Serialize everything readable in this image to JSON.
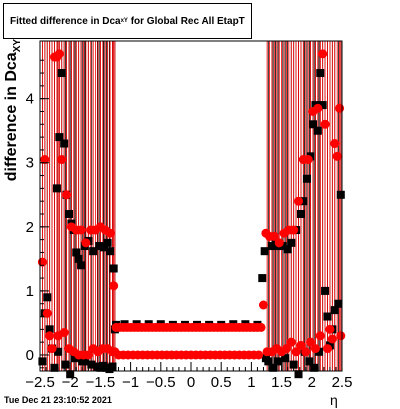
{
  "title": {
    "main": "Fitted difference in Dca",
    "sub": "xY",
    "rest": "for Global Rec All EtapT"
  },
  "ylabel": {
    "main": "difference in Dca",
    "sub": "XY"
  },
  "xlabel": "η",
  "timestamp": "Tue Dec 21 23:10:52 2021",
  "colors": {
    "series_a": "#000000",
    "series_b": "#ff0000",
    "frame": "#000000"
  },
  "chart_data": {
    "type": "scatter",
    "title": "Fitted difference in Dca xY for Global Rec All EtapT",
    "xlabel": "η",
    "ylabel": "difference in Dca XY",
    "xlim": [
      -2.5,
      2.5
    ],
    "ylim": [
      -0.25,
      4.9
    ],
    "x_ticks": [
      -2.5,
      -2,
      -1.5,
      -1,
      -0.5,
      0,
      0.5,
      1,
      1.5,
      2,
      2.5
    ],
    "x_tick_labels": [
      "−2.5",
      "−2",
      "−1.5",
      "−1",
      "−0.5",
      "0",
      "0.5",
      "1",
      "1.5",
      "2",
      "2.5"
    ],
    "y_ticks": [
      0,
      1,
      2,
      3,
      4
    ],
    "y_tick_labels": [
      "0",
      "1",
      "2",
      "3",
      "4"
    ],
    "grid": false,
    "legend": "none",
    "series": [
      {
        "marker": "square",
        "color": "#000000",
        "points": [
          [
            -2.46,
            -0.1
          ],
          [
            -2.42,
            0.65
          ],
          [
            -2.38,
            0.9
          ],
          [
            -2.34,
            0.4
          ],
          [
            -2.3,
            0.1
          ],
          [
            -2.26,
            -0.2
          ],
          [
            -2.22,
            2.6
          ],
          [
            -2.2,
            0.05
          ],
          [
            -2.18,
            3.4
          ],
          [
            -2.14,
            4.4
          ],
          [
            -2.1,
            3.3
          ],
          [
            -2.08,
            -0.15
          ],
          [
            -2.06,
            2.5
          ],
          [
            -2.02,
            2.2
          ],
          [
            -2.0,
            -0.3
          ],
          [
            -1.98,
            2.05
          ],
          [
            -1.94,
            1.95
          ],
          [
            -1.92,
            -0.05
          ],
          [
            -1.9,
            1.6
          ],
          [
            -1.86,
            1.5
          ],
          [
            -1.82,
            1.4
          ],
          [
            -1.8,
            -0.1
          ],
          [
            -1.76,
            1.7
          ],
          [
            -1.7,
            1.78
          ],
          [
            -1.62,
            1.62
          ],
          [
            -1.52,
            1.7
          ],
          [
            -1.44,
            1.68
          ],
          [
            -1.38,
            1.75
          ],
          [
            -1.34,
            1.62
          ],
          [
            -1.28,
            1.35
          ],
          [
            -1.26,
            0.4
          ],
          [
            -1.75,
            -0.1
          ],
          [
            -1.65,
            -0.15
          ],
          [
            -1.55,
            -0.18
          ],
          [
            -1.5,
            -0.2
          ],
          [
            -1.45,
            -0.17
          ],
          [
            -1.4,
            -0.2
          ],
          [
            -1.35,
            -0.22
          ],
          [
            -1.3,
            -0.18
          ],
          [
            -1.24,
            0.47
          ],
          [
            -1.1,
            0.48
          ],
          [
            -0.9,
            0.48
          ],
          [
            -0.7,
            0.48
          ],
          [
            -0.5,
            0.48
          ],
          [
            -0.3,
            0.47
          ],
          [
            -0.1,
            0.47
          ],
          [
            0.1,
            0.47
          ],
          [
            0.3,
            0.47
          ],
          [
            0.5,
            0.47
          ],
          [
            0.7,
            0.48
          ],
          [
            0.9,
            0.48
          ],
          [
            1.1,
            0.47
          ],
          [
            1.18,
            1.2
          ],
          [
            1.22,
            1.62
          ],
          [
            1.24,
            -0.05
          ],
          [
            1.28,
            -0.1
          ],
          [
            1.34,
            1.7
          ],
          [
            1.36,
            -0.2
          ],
          [
            1.4,
            1.75
          ],
          [
            1.44,
            -0.1
          ],
          [
            1.46,
            1.7
          ],
          [
            1.52,
            1.7
          ],
          [
            1.56,
            -0.05
          ],
          [
            1.6,
            1.65
          ],
          [
            1.66,
            1.75
          ],
          [
            1.7,
            -0.15
          ],
          [
            1.74,
            1.95
          ],
          [
            1.78,
            -0.3
          ],
          [
            1.82,
            2.2
          ],
          [
            1.86,
            2.4
          ],
          [
            1.88,
            0.05
          ],
          [
            1.92,
            2.75
          ],
          [
            1.96,
            -0.1
          ],
          [
            1.98,
            3.1
          ],
          [
            2.02,
            3.6
          ],
          [
            2.04,
            -0.2
          ],
          [
            2.06,
            3.9
          ],
          [
            2.1,
            3.5
          ],
          [
            2.12,
            0.05
          ],
          [
            2.14,
            4.4
          ],
          [
            2.18,
            3.9
          ],
          [
            2.22,
            1.0
          ],
          [
            2.26,
            0.6
          ],
          [
            2.3,
            0.15
          ],
          [
            2.34,
            0.4
          ],
          [
            2.38,
            0.7
          ],
          [
            2.44,
            0.8
          ],
          [
            2.48,
            2.5
          ]
        ]
      },
      {
        "marker": "circle",
        "color": "#ff0000",
        "points": [
          [
            -2.46,
            1.45
          ],
          [
            -2.42,
            3.05
          ],
          [
            -2.38,
            0.65
          ],
          [
            -2.34,
            0.3
          ],
          [
            -2.3,
            0.1
          ],
          [
            -2.26,
            4.65
          ],
          [
            -2.22,
            4.65
          ],
          [
            -2.2,
            0.3
          ],
          [
            -2.18,
            4.7
          ],
          [
            -2.14,
            3.05
          ],
          [
            -2.1,
            0.35
          ],
          [
            -2.06,
            2.5
          ],
          [
            -2.02,
            0.1
          ],
          [
            -1.98,
            2.0
          ],
          [
            -1.94,
            0.05
          ],
          [
            -1.9,
            1.95
          ],
          [
            -1.86,
            0.0
          ],
          [
            -1.82,
            1.95
          ],
          [
            -1.78,
            0.0
          ],
          [
            -1.74,
            1.75
          ],
          [
            -1.7,
            0.0
          ],
          [
            -1.66,
            1.95
          ],
          [
            -1.62,
            0.1
          ],
          [
            -1.58,
            1.95
          ],
          [
            -1.54,
            0.05
          ],
          [
            -1.5,
            2.0
          ],
          [
            -1.46,
            0.1
          ],
          [
            -1.42,
            1.95
          ],
          [
            -1.38,
            0.1
          ],
          [
            -1.34,
            1.9
          ],
          [
            -1.3,
            0.05
          ],
          [
            -1.28,
            1.08
          ],
          [
            -1.26,
            0.05
          ],
          [
            -1.24,
            0.43
          ],
          [
            -1.18,
            0.43
          ],
          [
            -1.12,
            0.43
          ],
          [
            -1.06,
            0.43
          ],
          [
            -1.0,
            0.43
          ],
          [
            -0.94,
            0.43
          ],
          [
            -0.88,
            0.43
          ],
          [
            -0.82,
            0.43
          ],
          [
            -0.76,
            0.43
          ],
          [
            -0.7,
            0.43
          ],
          [
            -0.64,
            0.43
          ],
          [
            -0.58,
            0.43
          ],
          [
            -0.52,
            0.43
          ],
          [
            -0.46,
            0.43
          ],
          [
            -0.4,
            0.43
          ],
          [
            -0.34,
            0.43
          ],
          [
            -0.28,
            0.43
          ],
          [
            -0.22,
            0.43
          ],
          [
            -0.16,
            0.43
          ],
          [
            -0.1,
            0.43
          ],
          [
            -0.04,
            0.43
          ],
          [
            0.02,
            0.43
          ],
          [
            0.08,
            0.43
          ],
          [
            0.14,
            0.43
          ],
          [
            0.2,
            0.43
          ],
          [
            0.26,
            0.43
          ],
          [
            0.32,
            0.43
          ],
          [
            0.38,
            0.43
          ],
          [
            0.44,
            0.43
          ],
          [
            0.5,
            0.43
          ],
          [
            0.56,
            0.43
          ],
          [
            0.62,
            0.43
          ],
          [
            0.68,
            0.43
          ],
          [
            0.74,
            0.43
          ],
          [
            0.8,
            0.43
          ],
          [
            0.86,
            0.43
          ],
          [
            0.92,
            0.43
          ],
          [
            0.98,
            0.43
          ],
          [
            1.04,
            0.43
          ],
          [
            1.1,
            0.43
          ],
          [
            1.16,
            0.43
          ],
          [
            -1.2,
            0.0
          ],
          [
            -1.12,
            0.0
          ],
          [
            -1.04,
            0.0
          ],
          [
            -0.96,
            0.0
          ],
          [
            -0.88,
            0.0
          ],
          [
            -0.8,
            0.0
          ],
          [
            -0.72,
            0.0
          ],
          [
            -0.64,
            0.0
          ],
          [
            -0.56,
            0.0
          ],
          [
            -0.48,
            0.0
          ],
          [
            -0.4,
            0.0
          ],
          [
            -0.32,
            0.0
          ],
          [
            -0.24,
            0.0
          ],
          [
            -0.16,
            0.0
          ],
          [
            -0.08,
            0.0
          ],
          [
            0.0,
            0.0
          ],
          [
            0.08,
            0.0
          ],
          [
            0.16,
            0.0
          ],
          [
            0.24,
            0.0
          ],
          [
            0.32,
            0.0
          ],
          [
            0.4,
            0.0
          ],
          [
            0.48,
            0.0
          ],
          [
            0.56,
            0.0
          ],
          [
            0.64,
            0.0
          ],
          [
            0.72,
            0.0
          ],
          [
            0.8,
            0.0
          ],
          [
            0.88,
            0.0
          ],
          [
            0.96,
            0.0
          ],
          [
            1.04,
            0.0
          ],
          [
            1.12,
            0.0
          ],
          [
            1.2,
            0.78
          ],
          [
            1.24,
            1.9
          ],
          [
            1.26,
            0.05
          ],
          [
            1.3,
            1.85
          ],
          [
            1.34,
            0.05
          ],
          [
            1.38,
            1.85
          ],
          [
            1.42,
            0.1
          ],
          [
            1.46,
            1.75
          ],
          [
            1.5,
            0.05
          ],
          [
            1.54,
            1.9
          ],
          [
            1.58,
            0.1
          ],
          [
            1.62,
            1.95
          ],
          [
            1.66,
            0.2
          ],
          [
            1.7,
            1.95
          ],
          [
            1.74,
            0.05
          ],
          [
            1.78,
            2.4
          ],
          [
            1.82,
            0.15
          ],
          [
            1.86,
            3.05
          ],
          [
            1.9,
            0.05
          ],
          [
            1.94,
            3.05
          ],
          [
            1.98,
            0.2
          ],
          [
            2.02,
            3.8
          ],
          [
            2.06,
            0.1
          ],
          [
            2.1,
            3.85
          ],
          [
            2.14,
            0.3
          ],
          [
            2.18,
            4.7
          ],
          [
            2.22,
            3.6
          ],
          [
            2.26,
            0.1
          ],
          [
            2.3,
            0.4
          ],
          [
            2.34,
            0.25
          ],
          [
            2.38,
            3.3
          ],
          [
            2.42,
            3.1
          ],
          [
            2.46,
            3.85
          ],
          [
            2.48,
            0.3
          ]
        ]
      }
    ]
  }
}
